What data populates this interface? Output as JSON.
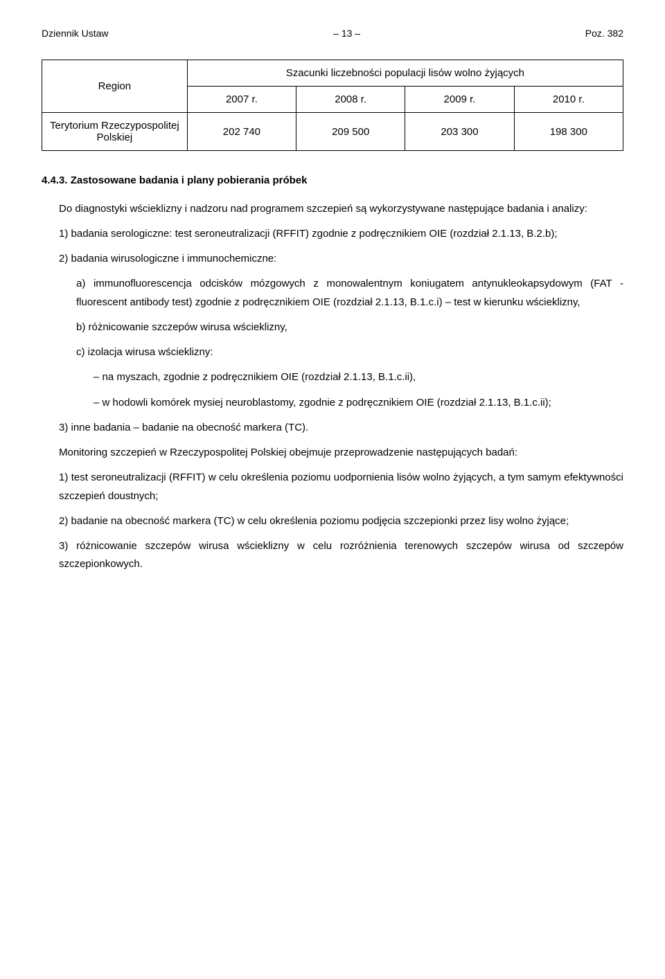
{
  "header": {
    "left": "Dziennik Ustaw",
    "center": "– 13 –",
    "right": "Poz. 382"
  },
  "table": {
    "caption": "Szacunki liczebności populacji lisów wolno żyjących",
    "region_head": "Region",
    "years": [
      "2007 r.",
      "2008 r.",
      "2009 r.",
      "2010 r."
    ],
    "row_label": "Terytorium Rzeczypospolitej Polskiej",
    "values": [
      "202 740",
      "209 500",
      "203 300",
      "198 300"
    ],
    "border_color": "#000000",
    "cell_padding": 10,
    "fontsize": 15
  },
  "section": {
    "number": "4.4.3.",
    "title": "Zastosowane badania i plany pobierania próbek",
    "intro": "Do diagnostyki wścieklizny i nadzoru nad programem szczepień są wykorzystywane następujące badania i analizy:",
    "item1": "1) badania serologiczne: test seroneutralizacji (RFFIT) zgodnie z podręcznikiem OIE (rozdział 2.1.13, B.2.b);",
    "item2": "2) badania wirusologiczne i immunochemiczne:",
    "item2a": "a) immunofluorescencja odcisków mózgowych z monowalentnym koniugatem antynukleokapsydowym (FAT - fluorescent antibody test) zgodnie z podręcznikiem OIE (rozdział 2.1.13, B.1.c.i) – test w kierunku wścieklizny,",
    "item2b": "b) różnicowanie szczepów wirusa wścieklizny,",
    "item2c": "c) izolacja wirusa wścieklizny:",
    "item2c_dash1": "– na myszach, zgodnie z podręcznikiem OIE (rozdział 2.1.13, B.1.c.ii),",
    "item2c_dash2": "– w hodowli komórek mysiej neuroblastomy, zgodnie z podręcznikiem OIE (rozdział 2.1.13, B.1.c.ii);",
    "item3": "3) inne badania – badanie na obecność markera (TC).",
    "monitoring_intro": "Monitoring szczepień w Rzeczypospolitej Polskiej obejmuje przeprowadzenie następujących badań:",
    "mon1": "1) test seroneutralizacji (RFFIT) w celu określenia poziomu uodpornienia lisów wolno żyjących, a tym samym efektywności szczepień doustnych;",
    "mon2": "2) badanie na obecność markera (TC) w celu określenia poziomu podjęcia szczepionki przez lisy wolno żyjące;",
    "mon3": "3) różnicowanie szczepów wirusa wścieklizny w celu rozróżnienia terenowych szczepów wirusa od szczepów szczepionkowych."
  },
  "colors": {
    "text": "#000000",
    "background": "#ffffff"
  },
  "typography": {
    "body_fontsize": 15,
    "line_height": 1.7,
    "font_family": "Arial"
  }
}
